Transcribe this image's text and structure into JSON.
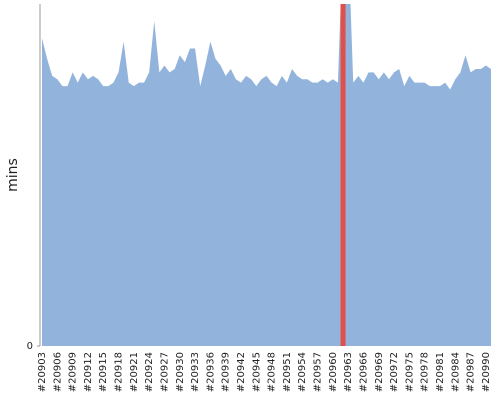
{
  "chart_data": {
    "type": "area",
    "y_label": "mins",
    "color": "#92b4dc",
    "highlight_color": "#e0504a",
    "highlight_index": 59,
    "categories": [
      "#20903",
      null,
      null,
      "#20906",
      null,
      null,
      "#20909",
      null,
      null,
      "#20912",
      null,
      null,
      "#20915",
      null,
      null,
      "#20918",
      null,
      null,
      "#20921",
      null,
      null,
      "#20924",
      null,
      null,
      "#20927",
      null,
      null,
      "#20930",
      null,
      null,
      "#20933",
      null,
      null,
      "#20936",
      null,
      null,
      "#20939",
      null,
      null,
      "#20942",
      null,
      null,
      "#20945",
      null,
      null,
      "#20948",
      null,
      null,
      "#20951",
      null,
      null,
      "#20954",
      null,
      null,
      "#20957",
      null,
      null,
      "#20960",
      null,
      null,
      "#20963",
      null,
      null,
      "#20966",
      null,
      null,
      "#20969",
      null,
      null,
      "#20972",
      null,
      null,
      "#20975",
      null,
      null,
      "#20978",
      null,
      null,
      "#20981",
      null,
      null,
      "#20984",
      null,
      null,
      "#20987",
      null,
      null,
      "#20990",
      null
    ],
    "values": [
      9.0,
      8.4,
      7.9,
      7.8,
      7.6,
      7.6,
      8.0,
      7.7,
      8.0,
      7.8,
      7.9,
      7.8,
      7.6,
      7.6,
      7.7,
      8.0,
      8.9,
      7.7,
      7.6,
      7.7,
      7.7,
      8.0,
      9.5,
      8.0,
      8.2,
      8.0,
      8.1,
      8.5,
      8.3,
      8.7,
      8.7,
      7.6,
      8.2,
      8.9,
      8.4,
      8.2,
      7.9,
      8.1,
      7.8,
      7.7,
      7.9,
      7.8,
      7.6,
      7.8,
      7.9,
      7.7,
      7.6,
      7.9,
      7.7,
      8.1,
      7.9,
      7.8,
      7.8,
      7.7,
      7.7,
      7.8,
      7.7,
      7.8,
      7.7,
      12,
      12,
      7.7,
      7.9,
      7.7,
      8.0,
      8.0,
      7.8,
      8.0,
      7.8,
      8.0,
      8.1,
      7.6,
      7.9,
      7.7,
      7.7,
      7.7,
      7.6,
      7.6,
      7.6,
      7.7,
      7.5,
      7.8,
      8.0,
      8.5,
      8.0,
      8.1,
      8.1,
      8.2,
      8.1
    ],
    "ylim": [
      0,
      10
    ],
    "yticks": [
      0
    ]
  }
}
